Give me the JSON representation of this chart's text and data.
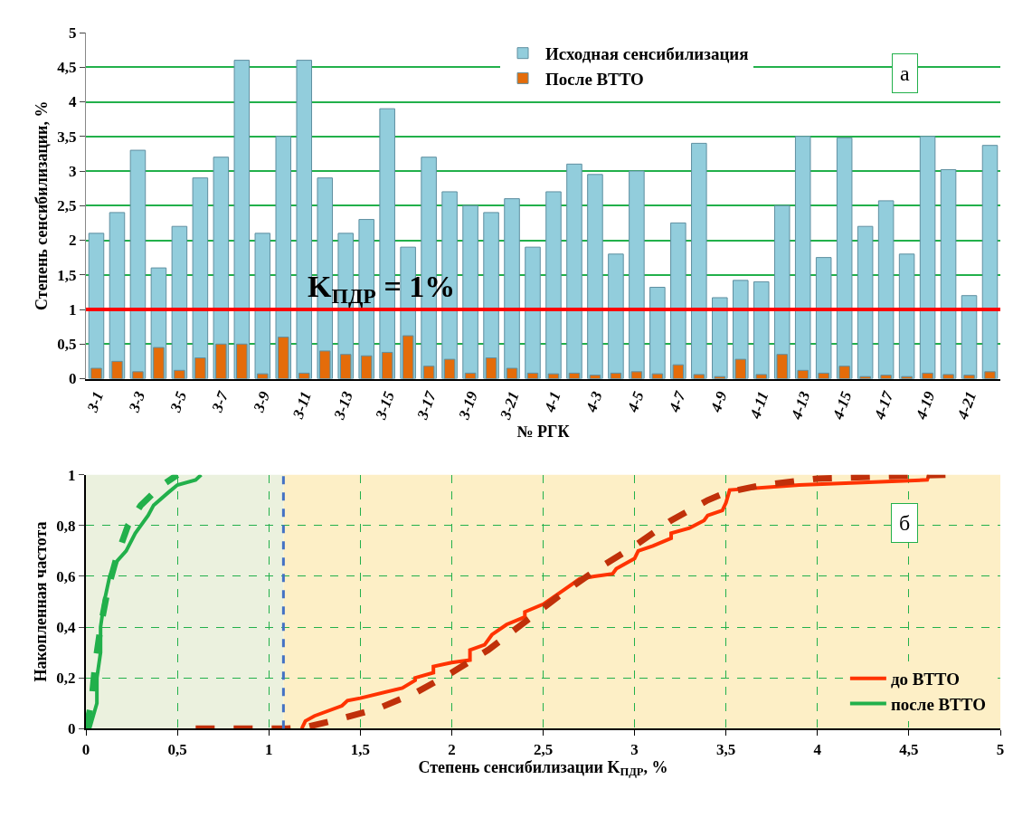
{
  "chart_data": [
    {
      "type": "bar",
      "ylabel": "Степень сенсибилизации, %",
      "xlabel": "№ РГК",
      "categories": [
        "3-1",
        null,
        "3-3",
        null,
        "3-5",
        null,
        "3-7",
        null,
        "3-9",
        null,
        "3-11",
        null,
        "3-13",
        null,
        "3-15",
        null,
        "3-17",
        null,
        "3-19",
        null,
        "3-21",
        null,
        "4-1",
        null,
        "4-3",
        null,
        "4-5",
        null,
        "4-7",
        null,
        "4-9",
        null,
        "4-11",
        null,
        "4-13",
        null,
        "4-15",
        null,
        "4-17",
        null,
        "4-19",
        null,
        "4-21",
        null
      ],
      "series": [
        {
          "name": "Исходная сенсибилизация",
          "color": "#92cddc",
          "values": [
            2.1,
            2.4,
            3.3,
            1.6,
            2.2,
            2.9,
            3.2,
            4.6,
            2.1,
            3.5,
            4.6,
            2.9,
            2.1,
            2.3,
            3.9,
            1.9,
            3.2,
            2.7,
            2.5,
            2.4,
            2.6,
            1.9,
            2.7,
            3.1,
            2.95,
            1.8,
            3.0,
            1.32,
            2.25,
            3.4,
            1.17,
            1.42,
            1.4,
            2.5,
            3.5,
            1.75,
            3.48,
            2.2,
            2.57,
            1.8,
            3.5,
            3.02,
            1.2,
            3.37
          ]
        },
        {
          "name": "После ВТТО",
          "color": "#e46c0a",
          "values": [
            0.15,
            0.25,
            0.1,
            0.45,
            0.12,
            0.3,
            0.5,
            0.5,
            0.07,
            0.6,
            0.08,
            0.4,
            0.35,
            0.33,
            0.38,
            0.62,
            0.18,
            0.28,
            0.08,
            0.3,
            0.15,
            0.08,
            0.07,
            0.08,
            0.05,
            0.08,
            0.1,
            0.07,
            0.2,
            0.06,
            0.03,
            0.28,
            0.06,
            0.35,
            0.12,
            0.08,
            0.18,
            0.03,
            0.05,
            0.03,
            0.08,
            0.06,
            0.05,
            0.1
          ]
        }
      ],
      "ylim": [
        0,
        5
      ],
      "yticks": [
        0,
        {
          "value": 0.5,
          "label": "0,5"
        },
        1,
        {
          "value": 1.5,
          "label": "1,5"
        },
        2,
        {
          "value": 2.5,
          "label": "2,5"
        },
        3,
        {
          "value": 3.5,
          "label": "3,5"
        },
        4,
        {
          "value": 4.5,
          "label": "4,5"
        },
        5
      ],
      "grid": "y",
      "legend": "top right",
      "ref_lines": [
        {
          "axis": "y",
          "value": 1,
          "label": "K$_{ПДР}$ = 1%",
          "color": "#ff0000",
          "line_style": "solid"
        }
      ],
      "annotations": [
        "а"
      ]
    },
    {
      "type": "line",
      "xlabel": "Степень сенсибилизации K$_{ПДР}$, %",
      "ylabel": "Накопленная частота",
      "series": [
        {
          "name": "до ВТТО",
          "color": "#ff3300",
          "line_style": "solid",
          "x": [
            1.18,
            1.2,
            1.25,
            1.4,
            1.43,
            1.5,
            1.73,
            1.8,
            1.8,
            1.9,
            1.9,
            2.0,
            2.1,
            2.1,
            2.18,
            2.22,
            2.3,
            2.4,
            2.4,
            2.5,
            2.6,
            2.7,
            2.78,
            2.88,
            2.9,
            3.0,
            3.02,
            3.1,
            3.2,
            3.2,
            3.3,
            3.38,
            3.4,
            3.48,
            3.5,
            3.52,
            3.9,
            4.6,
            4.61
          ],
          "values": [
            0,
            0.03,
            0.05,
            0.09,
            0.11,
            0.12,
            0.16,
            0.19,
            0.2,
            0.22,
            0.245,
            0.26,
            0.27,
            0.31,
            0.33,
            0.37,
            0.41,
            0.44,
            0.46,
            0.49,
            0.54,
            0.59,
            0.6,
            0.61,
            0.63,
            0.67,
            0.7,
            0.72,
            0.75,
            0.77,
            0.79,
            0.82,
            0.84,
            0.86,
            0.89,
            0.94,
            0.96,
            0.98,
            1.0
          ]
        },
        {
          "name": "после ВТТО",
          "color": "#22b04b",
          "line_style": "solid",
          "x": [
            0.02,
            0.04,
            0.06,
            0.06,
            0.08,
            0.08,
            0.1,
            0.13,
            0.17,
            0.22,
            0.27,
            0.3,
            0.34,
            0.37,
            0.45,
            0.5,
            0.6,
            0.63
          ],
          "values": [
            0,
            0.05,
            0.1,
            0.2,
            0.3,
            0.4,
            0.5,
            0.6,
            0.66,
            0.7,
            0.77,
            0.8,
            0.84,
            0.88,
            0.93,
            0.96,
            0.98,
            1.0
          ]
        },
        {
          "color": "#c0300a",
          "line_style": "dashed",
          "x": [
            0.6,
            1.1,
            1.2,
            1.4,
            1.6,
            1.8,
            2.0,
            2.2,
            2.4,
            2.6,
            2.8,
            3.0,
            3.2,
            3.4,
            3.5,
            3.7,
            4.0,
            4.4,
            4.7
          ],
          "values": [
            0,
            0,
            0.005,
            0.04,
            0.08,
            0.14,
            0.22,
            0.31,
            0.42,
            0.53,
            0.63,
            0.72,
            0.82,
            0.9,
            0.93,
            0.96,
            0.985,
            0.995,
            1.0
          ]
        },
        {
          "color": "#22b04b",
          "line_style": "dashed",
          "x": [
            0.0,
            0.03,
            0.05,
            0.08,
            0.12,
            0.17,
            0.23,
            0.3,
            0.4,
            0.5
          ],
          "values": [
            0,
            0.1,
            0.25,
            0.4,
            0.55,
            0.68,
            0.8,
            0.88,
            0.95,
            1.0
          ]
        }
      ],
      "xlim": [
        0,
        5
      ],
      "xticks": [
        0,
        {
          "value": 0.5,
          "label": "0,5"
        },
        1,
        {
          "value": 1.5,
          "label": "1,5"
        },
        2,
        {
          "value": 2.5,
          "label": "2,5"
        },
        3,
        {
          "value": 3.5,
          "label": "3,5"
        },
        4,
        {
          "value": 4.5,
          "label": "4,5"
        },
        5
      ],
      "ylim": [
        0,
        1
      ],
      "yticks": [
        0,
        {
          "value": 0.2,
          "label": "0,2"
        },
        {
          "value": 0.4,
          "label": "0,4"
        },
        {
          "value": 0.6,
          "label": "0,6"
        },
        {
          "value": 0.8,
          "label": "0,8"
        },
        1
      ],
      "grid": true,
      "legend": "bottom right",
      "marker": "none",
      "bands": [
        {
          "axis": "x",
          "from": 0,
          "to": 1.08,
          "color": "#ebf1de"
        },
        {
          "axis": "x",
          "from": 1.08,
          "to": 5,
          "color": "#fdefc6"
        }
      ],
      "ref_lines": [
        {
          "axis": "x",
          "value": 1.08,
          "color": "#4472c4",
          "line_style": "dashed"
        }
      ],
      "annotations": [
        "б"
      ]
    }
  ]
}
